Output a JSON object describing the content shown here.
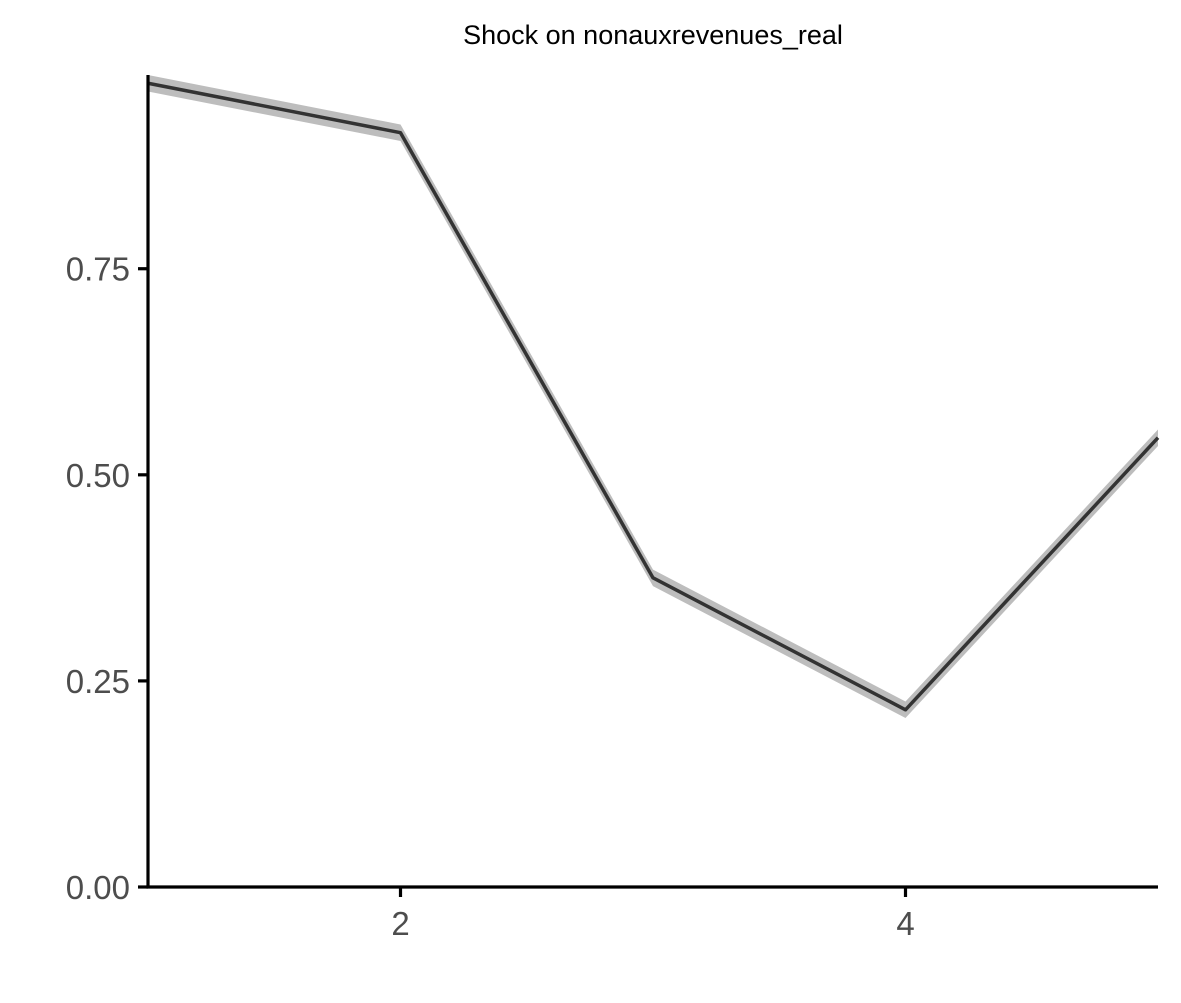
{
  "chart_data": {
    "type": "line",
    "title": "Shock on nonauxrevenues_real",
    "xlabel": "",
    "ylabel": "",
    "x": [
      1,
      2,
      3,
      4,
      5
    ],
    "series": [
      {
        "values": [
          0.975,
          0.915,
          0.375,
          0.215,
          0.545
        ],
        "lower": [
          0.965,
          0.905,
          0.365,
          0.205,
          0.535
        ],
        "upper": [
          0.985,
          0.925,
          0.385,
          0.225,
          0.555
        ]
      }
    ],
    "xlim": [
      1,
      5
    ],
    "ylim": [
      0,
      0.985
    ],
    "x_ticks": [
      2,
      4
    ],
    "x_tick_labels": [
      "2",
      "4"
    ],
    "y_ticks": [
      0,
      0.25,
      0.5,
      0.75
    ],
    "y_tick_labels": [
      "0.00",
      "0.25",
      "0.50",
      "0.75"
    ],
    "grid": false,
    "legend": "none",
    "colors": {
      "line": "#333333",
      "band": "#bdbdbd",
      "axis": "#000000",
      "tick_label": "#4d4d4d",
      "background": "#ffffff"
    }
  }
}
